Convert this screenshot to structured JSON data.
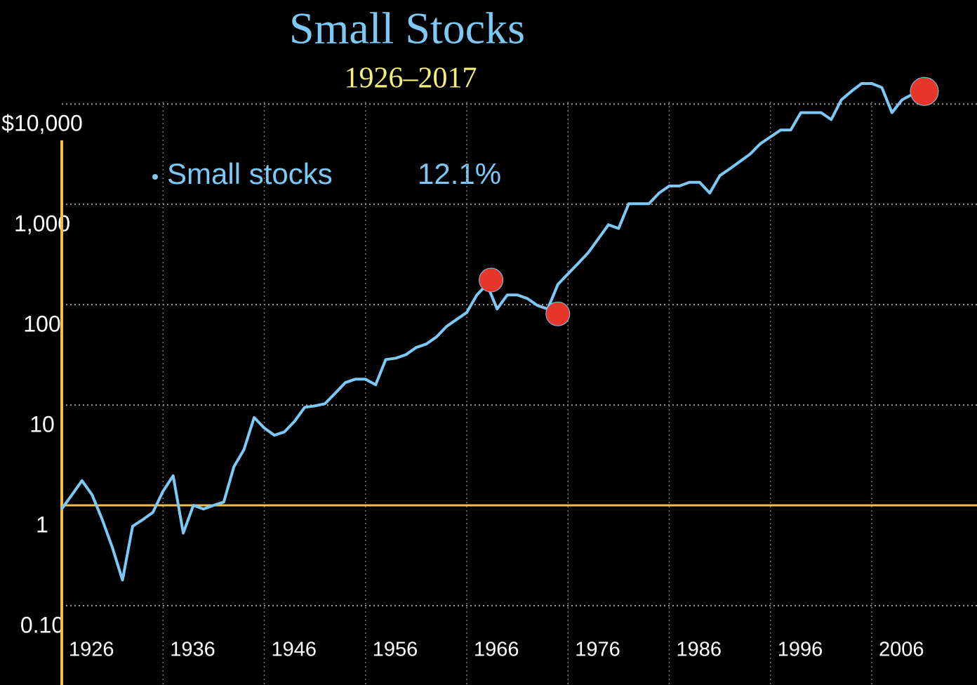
{
  "chart_data": {
    "type": "line",
    "title": "Small Stocks",
    "subtitle": "1926–2017",
    "annotation": "12.1%",
    "log_scale": true,
    "grid": true,
    "reference_line": 1,
    "x": [
      1926,
      1927,
      1928,
      1929,
      1930,
      1931,
      1932,
      1933,
      1934,
      1935,
      1936,
      1937,
      1938,
      1939,
      1940,
      1941,
      1942,
      1943,
      1944,
      1945,
      1946,
      1947,
      1948,
      1949,
      1950,
      1951,
      1952,
      1953,
      1954,
      1955,
      1956,
      1957,
      1958,
      1959,
      1960,
      1961,
      1962,
      1963,
      1964,
      1965,
      1966,
      1967,
      1968,
      1969,
      1970,
      1971,
      1972,
      1973,
      1974,
      1975,
      1976,
      1977,
      1978,
      1979,
      1980,
      1981,
      1982,
      1983,
      1984,
      1985,
      1986,
      1987,
      1988,
      1989,
      1990,
      1991,
      1992,
      1993,
      1994,
      1995,
      1996,
      1997,
      1998,
      1999,
      2000,
      2001,
      2002,
      2003,
      2004,
      2005,
      2006,
      2007,
      2008,
      2009,
      2010
    ],
    "series": [
      {
        "name": "Small stocks",
        "color": "#7ec8f5",
        "values": [
          0.92,
          1.27,
          1.76,
          1.27,
          0.72,
          0.38,
          0.18,
          0.62,
          0.72,
          0.85,
          1.38,
          1.97,
          0.53,
          1.0,
          0.92,
          1.0,
          1.08,
          2.42,
          3.6,
          7.5,
          5.9,
          5.0,
          5.4,
          6.9,
          9.5,
          9.8,
          10.3,
          13.1,
          16.7,
          18.1,
          18.1,
          15.9,
          28.4,
          29.3,
          31.8,
          37.4,
          40.5,
          47.6,
          60.6,
          71.2,
          83.7,
          125,
          159,
          90.7,
          125,
          125,
          115,
          98,
          90.7,
          159,
          203,
          258,
          330,
          454,
          626,
          575,
          1016,
          1016,
          1016,
          1298,
          1524,
          1524,
          1658,
          1658,
          1298,
          1935,
          2266,
          2684,
          3176,
          4020,
          4700,
          5500,
          5500,
          8200,
          8200,
          8200,
          7000,
          11000,
          13400,
          16000,
          16000,
          14600,
          8200,
          11000,
          12500
        ]
      }
    ],
    "markers": {
      "color": "#e8372a",
      "x": [
        1968.4,
        1975.0,
        2011.2
      ],
      "values": [
        176,
        81,
        13360
      ]
    },
    "xlim": [
      1926,
      2016.4
    ],
    "xticks": [
      1926,
      1936,
      1946,
      1956,
      1966,
      1976,
      1986,
      1996,
      2006
    ],
    "ylim": [
      0.1,
      30000
    ],
    "yticks": [
      {
        "value": 10000,
        "label": "$10,000"
      },
      {
        "value": 1000,
        "label": "1,000"
      },
      100,
      10,
      1,
      {
        "value": 0.1,
        "label": "0.10"
      }
    ],
    "axis_color": "#f5c04a"
  }
}
